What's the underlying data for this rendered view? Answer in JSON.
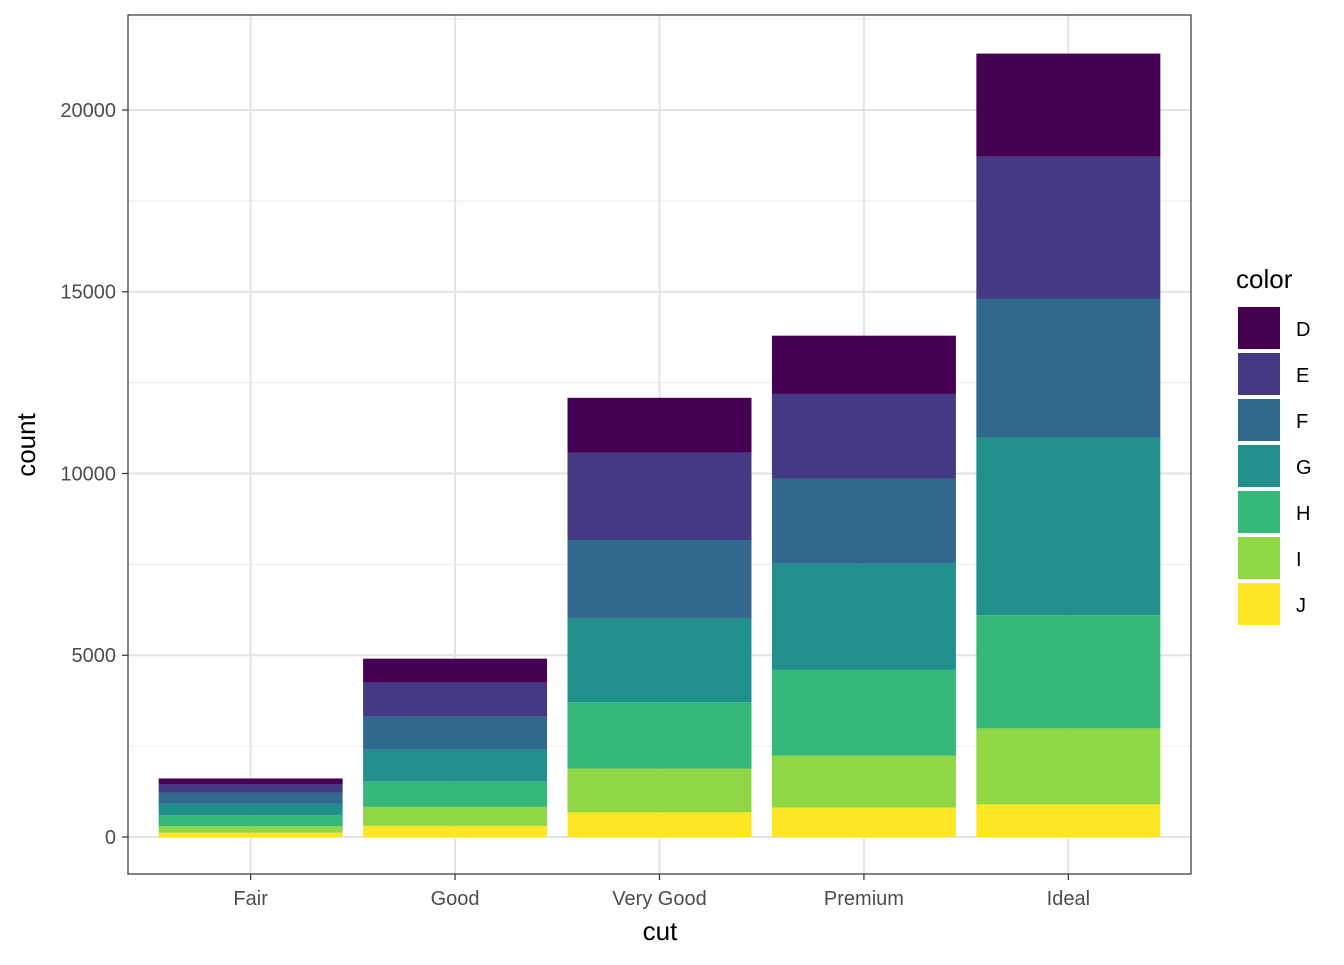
{
  "chart_data": {
    "type": "bar",
    "stacked": true,
    "xlabel": "cut",
    "ylabel": "count",
    "categories": [
      "Fair",
      "Good",
      "Very Good",
      "Premium",
      "Ideal"
    ],
    "ylim": [
      -1018,
      22613
    ],
    "yticks": [
      0,
      5000,
      10000,
      15000,
      20000
    ],
    "grid": true,
    "legend": {
      "title": "color",
      "placement": "right"
    },
    "series": [
      {
        "name": "D",
        "color": "#440154",
        "values": [
          163,
          662,
          1513,
          1603,
          2834
        ]
      },
      {
        "name": "E",
        "color": "#443A83",
        "values": [
          224,
          933,
          2400,
          2337,
          3903
        ]
      },
      {
        "name": "F",
        "color": "#31688E",
        "values": [
          312,
          909,
          2164,
          2331,
          3826
        ]
      },
      {
        "name": "G",
        "color": "#21908C",
        "values": [
          314,
          871,
          2299,
          2924,
          4884
        ]
      },
      {
        "name": "H",
        "color": "#35B779",
        "values": [
          303,
          702,
          1824,
          2360,
          3115
        ]
      },
      {
        "name": "I",
        "color": "#8FD744",
        "values": [
          175,
          522,
          1204,
          1428,
          2093
        ]
      },
      {
        "name": "J",
        "color": "#FDE725",
        "values": [
          119,
          307,
          678,
          808,
          896
        ]
      }
    ]
  }
}
